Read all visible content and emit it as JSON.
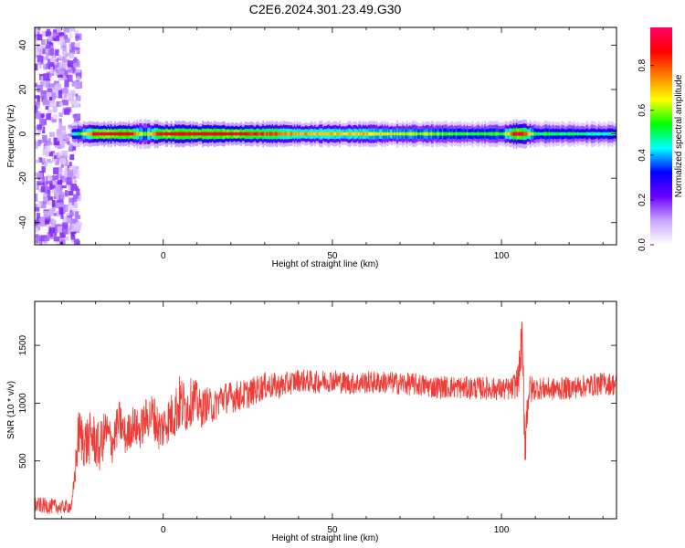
{
  "chart_data": [
    {
      "type": "heatmap",
      "title": "C2E6.2024.301.23.49.G30",
      "xlabel": "Height of straight line (km)",
      "ylabel": "Frequency (Hz)",
      "xlim": [
        -38,
        134
      ],
      "ylim": [
        -50,
        48
      ],
      "xticks": [
        0,
        50,
        100
      ],
      "yticks": [
        -40,
        -20,
        0,
        20,
        40
      ],
      "colorbar": {
        "label": "Normalized spectral amplitude",
        "range": [
          0,
          0.97
        ],
        "ticks": [
          "0.0",
          "0.2",
          "0.4",
          "0.6",
          "0.8"
        ],
        "tick_values": [
          0,
          0.2,
          0.4,
          0.6,
          0.8
        ],
        "colormap": [
          "#ffffff",
          "#c9a6ff",
          "#6b00ff",
          "#0000ff",
          "#00ffff",
          "#00ff00",
          "#ffff00",
          "#ff8000",
          "#ff0000",
          "#ff0066"
        ]
      },
      "noise_region_x": [
        -38,
        -27
      ],
      "band": [
        {
          "x": -26,
          "amplitude": 0.45,
          "halfwidth_hz": 3
        },
        {
          "x": -20,
          "amplitude": 0.9,
          "halfwidth_hz": 3
        },
        {
          "x": -10,
          "amplitude": 0.92,
          "halfwidth_hz": 3
        },
        {
          "x": -6,
          "amplitude": 0.55,
          "halfwidth_hz": 4
        },
        {
          "x": 0,
          "amplitude": 0.9,
          "halfwidth_hz": 3
        },
        {
          "x": 10,
          "amplitude": 0.88,
          "halfwidth_hz": 3
        },
        {
          "x": 20,
          "amplitude": 0.92,
          "halfwidth_hz": 3
        },
        {
          "x": 30,
          "amplitude": 0.82,
          "halfwidth_hz": 3
        },
        {
          "x": 40,
          "amplitude": 0.72,
          "halfwidth_hz": 3
        },
        {
          "x": 50,
          "amplitude": 0.68,
          "halfwidth_hz": 3
        },
        {
          "x": 60,
          "amplitude": 0.7,
          "halfwidth_hz": 3
        },
        {
          "x": 70,
          "amplitude": 0.62,
          "halfwidth_hz": 3
        },
        {
          "x": 80,
          "amplitude": 0.58,
          "halfwidth_hz": 3
        },
        {
          "x": 90,
          "amplitude": 0.55,
          "halfwidth_hz": 3
        },
        {
          "x": 100,
          "amplitude": 0.55,
          "halfwidth_hz": 3
        },
        {
          "x": 105,
          "amplitude": 0.95,
          "halfwidth_hz": 4
        },
        {
          "x": 110,
          "amplitude": 0.52,
          "halfwidth_hz": 3
        },
        {
          "x": 120,
          "amplitude": 0.5,
          "halfwidth_hz": 3
        },
        {
          "x": 134,
          "amplitude": 0.45,
          "halfwidth_hz": 3
        }
      ]
    },
    {
      "type": "line",
      "xlabel": "Height of straight line (km)",
      "ylabel": "SNR (10 * v/v)",
      "xlim": [
        -38,
        134
      ],
      "ylim": [
        0,
        1880
      ],
      "xticks": [
        0,
        50,
        100
      ],
      "yticks": [
        500,
        1000,
        1500
      ],
      "color": "#ef3b36",
      "series": [
        {
          "x": [
            -38,
            -34,
            -30,
            -27,
            -25,
            -23,
            -21,
            -19,
            -17,
            -15,
            -13,
            -11,
            -9,
            -7,
            -5,
            -3,
            -1,
            1,
            3,
            5,
            7,
            9,
            11,
            13,
            15,
            17,
            20,
            25,
            30,
            35,
            40,
            45,
            50,
            55,
            60,
            65,
            70,
            75,
            80,
            85,
            90,
            95,
            100,
            103,
            105,
            106,
            107,
            108,
            110,
            115,
            120,
            125,
            130,
            134
          ],
          "y": [
            120,
            110,
            100,
            110,
            750,
            650,
            720,
            600,
            760,
            650,
            850,
            700,
            820,
            760,
            870,
            900,
            760,
            840,
            900,
            1000,
            960,
            1050,
            940,
            1000,
            960,
            1050,
            1050,
            1080,
            1150,
            1150,
            1200,
            1180,
            1200,
            1170,
            1180,
            1180,
            1170,
            1160,
            1140,
            1140,
            1130,
            1130,
            1120,
            1120,
            1200,
            1550,
            700,
            1100,
            1130,
            1120,
            1130,
            1150,
            1170,
            1160
          ],
          "noise_amplitude": [
            70,
            70,
            60,
            60,
            220,
            240,
            220,
            220,
            200,
            180,
            180,
            170,
            170,
            170,
            180,
            200,
            200,
            200,
            220,
            260,
            220,
            200,
            170,
            150,
            140,
            140,
            140,
            130,
            120,
            110,
            100,
            100,
            100,
            100,
            100,
            100,
            100,
            100,
            100,
            100,
            100,
            100,
            100,
            100,
            150,
            250,
            300,
            150,
            100,
            100,
            100,
            100,
            100,
            100
          ]
        }
      ]
    }
  ]
}
